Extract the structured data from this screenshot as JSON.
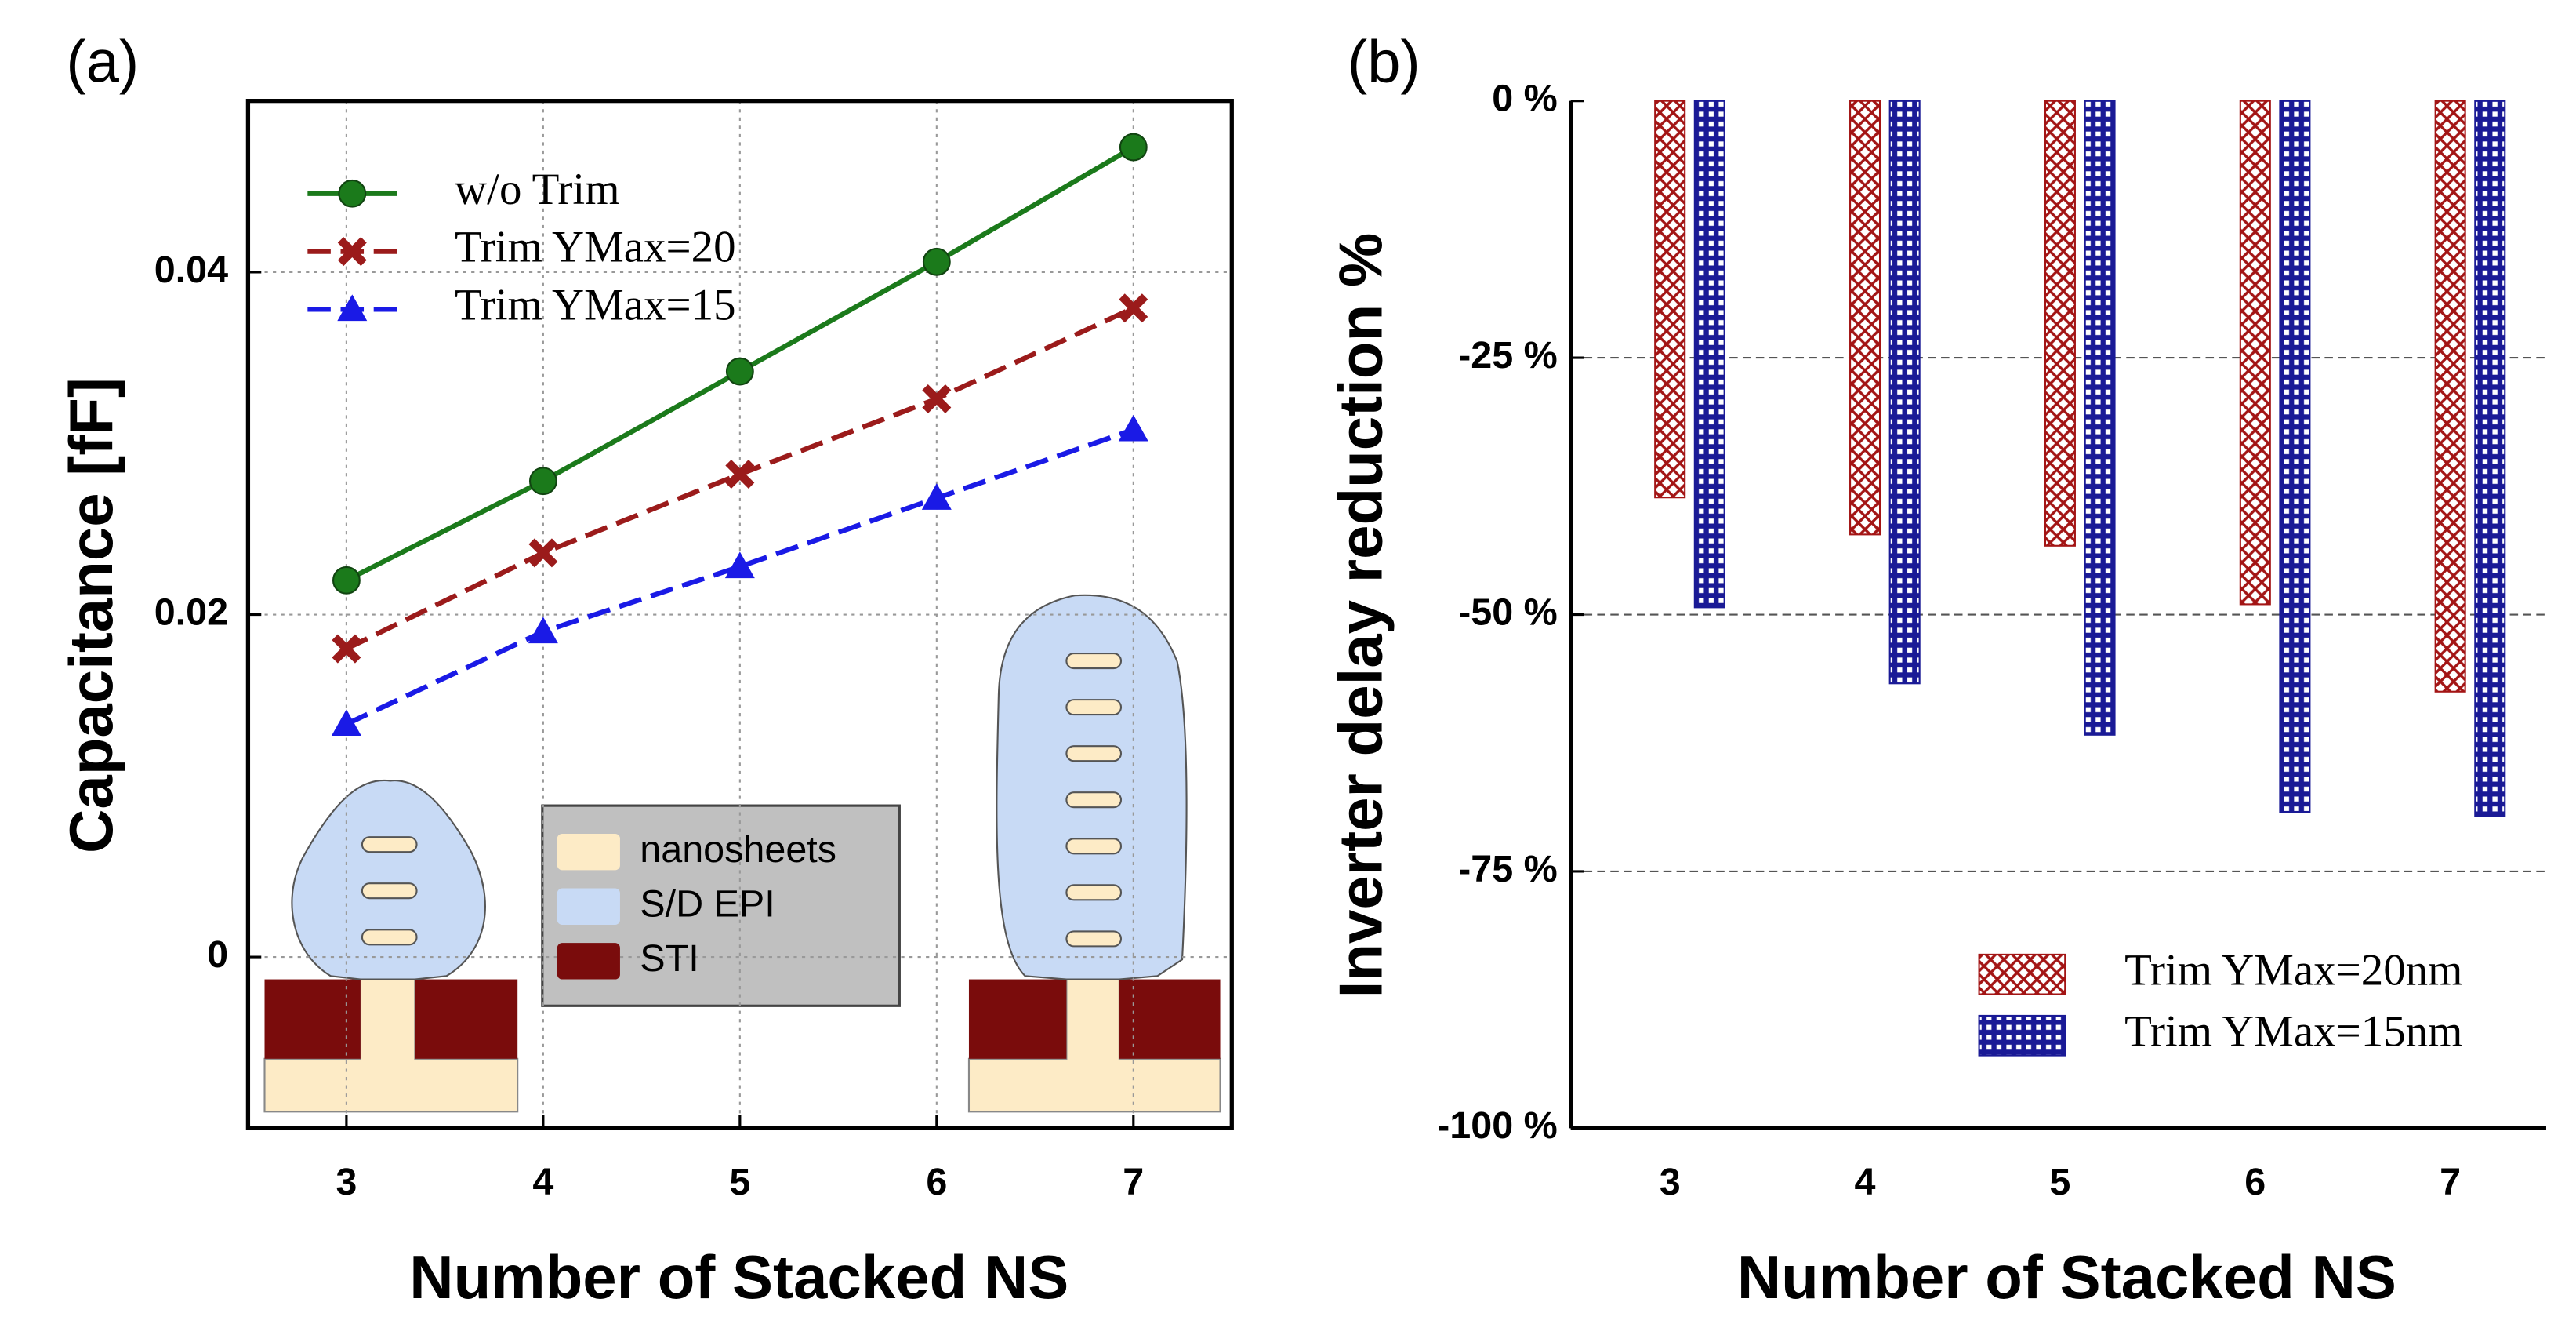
{
  "chart_data": [
    {
      "type": "line",
      "panel_label": "(a)",
      "x_label": "Number of Stacked NS",
      "y_label": "Capacitance [fF]",
      "x": [
        3,
        4,
        5,
        6,
        7
      ],
      "xlim": [
        2.5,
        7.5
      ],
      "xticks": [
        3,
        4,
        5,
        6,
        7
      ],
      "ylim": [
        -0.01,
        0.05
      ],
      "yticks": [
        0,
        0.02,
        0.04
      ],
      "grid": true,
      "legend": "upper left",
      "series": [
        {
          "name": "w/o Trim",
          "color": "#1b7a1b",
          "linestyle": "solid",
          "marker": "circle",
          "values": [
            0.022,
            0.0278,
            0.0342,
            0.0406,
            0.0473
          ]
        },
        {
          "name": "Trim YMax=20",
          "color": "#9b1b1b",
          "linestyle": "dashed",
          "marker": "x",
          "values": [
            0.018,
            0.0236,
            0.0282,
            0.0326,
            0.0379
          ]
        },
        {
          "name": "Trim YMax=15",
          "color": "#1a1ae6",
          "linestyle": "dashed",
          "marker": "triangle",
          "values": [
            0.0136,
            0.019,
            0.0228,
            0.0268,
            0.0308
          ]
        }
      ],
      "inset_legend": [
        {
          "label": "nanosheets",
          "color": "#fdebc6"
        },
        {
          "label": "S/D EPI",
          "color": "#c8daf5"
        },
        {
          "label": "STI",
          "color": "#7a0c0c"
        }
      ]
    },
    {
      "type": "bar",
      "panel_label": "(b)",
      "x_label": "Number of Stacked NS",
      "y_label": "Inverter delay reduction %",
      "categories": [
        "3",
        "4",
        "5",
        "6",
        "7"
      ],
      "ylim": [
        -100,
        0
      ],
      "yticks": [
        {
          "value": 0,
          "label": "0 %"
        },
        {
          "value": -25,
          "label": "-25 %"
        },
        {
          "value": -50,
          "label": "-50 %"
        },
        {
          "value": -75,
          "label": "-75 %"
        },
        {
          "value": -100,
          "label": "-100 %"
        }
      ],
      "grid": true,
      "legend": "lower right",
      "series": [
        {
          "name": "Trim YMax=20nm",
          "color": "#a31515",
          "pattern": "crosshatch",
          "values": [
            -38.6,
            -42.2,
            -43.3,
            -49,
            -57.5
          ]
        },
        {
          "name": "Trim YMax=15nm",
          "color": "#1a1a96",
          "pattern": "grid",
          "values": [
            -49.3,
            -56.7,
            -61.7,
            -69.2,
            -69.6
          ]
        }
      ]
    }
  ]
}
